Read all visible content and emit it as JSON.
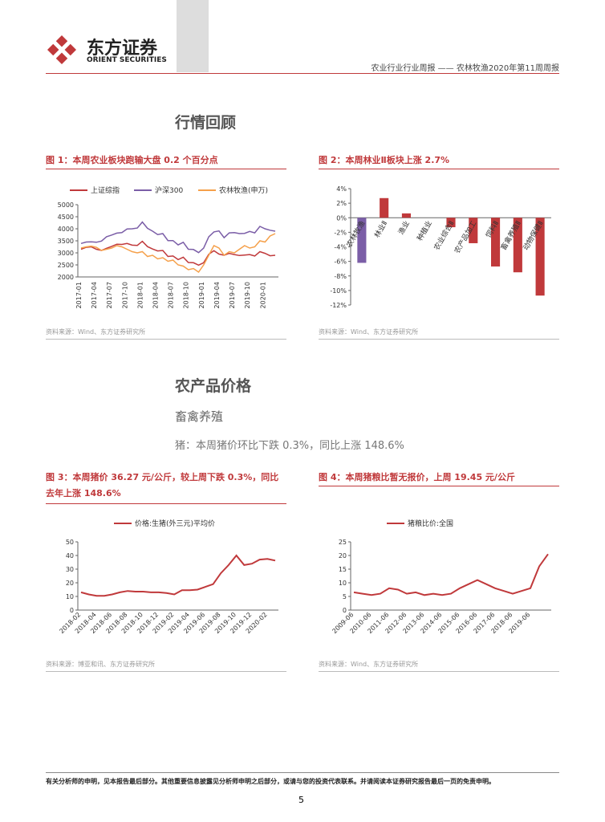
{
  "header": {
    "logo_cn": "东方证券",
    "logo_en": "ORIENT SECURITIES",
    "report": "农业行业行业周报 —— 农林牧渔2020年第11周周报"
  },
  "sections": {
    "review": "行情回顾",
    "prices": "农产品价格",
    "livestock": "畜禽养殖",
    "pig": "猪：本周猪价环比下跌 0.3%，同比上涨 148.6%"
  },
  "figures": [
    {
      "title": "图 1：本周农业板块跑输大盘 0.2 个百分点",
      "source": "资料来源：Wind、东方证券研究所",
      "chart": {
        "type": "line",
        "categories": [
          "2017-01",
          null,
          null,
          "2017-04",
          null,
          null,
          "2017-07",
          null,
          null,
          "2017-10",
          null,
          null,
          "2018-01",
          null,
          null,
          "2018-04",
          null,
          null,
          "2018-07",
          null,
          null,
          "2018-10",
          null,
          null,
          "2019-01",
          null,
          null,
          "2019-04",
          null,
          null,
          "2019-07",
          null,
          null,
          "2019-10",
          null,
          null,
          "2020-01",
          null,
          null
        ],
        "ylim": [
          2000,
          5000
        ],
        "yticks": [
          2000,
          2500,
          3000,
          3500,
          4000,
          4500,
          5000
        ],
        "series": [
          {
            "name": "上证综指",
            "color": "#c0393b",
            "values": [
              3150,
              3230,
              3250,
              3150,
              3100,
              3190,
              3270,
              3360,
              3350,
              3390,
              3320,
              3310,
              3480,
              3260,
              3160,
              3080,
              3100,
              2850,
              2870,
              2720,
              2820,
              2600,
              2590,
              2490,
              2590,
              2940,
              3090,
              2950,
              2900,
              2980,
              2930,
              2890,
              2910,
              2930,
              2870,
              3050,
              2980,
              2880,
              2900
            ]
          },
          {
            "name": "沪深300",
            "color": "#7b5ea7",
            "values": [
              3390,
              3450,
              3460,
              3440,
              3490,
              3670,
              3740,
              3820,
              3840,
              3990,
              4000,
              4030,
              4280,
              4020,
              3900,
              3760,
              3800,
              3510,
              3510,
              3330,
              3440,
              3150,
              3140,
              3010,
              3200,
              3670,
              3870,
              3910,
              3630,
              3830,
              3840,
              3800,
              3810,
              3890,
              3830,
              4100,
              4000,
              3940,
              3900
            ]
          },
          {
            "name": "农林牧渔(申万)",
            "color": "#f5a04a",
            "values": [
              3200,
              3250,
              3280,
              3230,
              3100,
              3150,
              3200,
              3300,
              3250,
              3150,
              3050,
              3000,
              3050,
              2850,
              2900,
              2750,
              2800,
              2650,
              2700,
              2500,
              2450,
              2300,
              2350,
              2200,
              2500,
              2900,
              3300,
              3200,
              2900,
              3050,
              3000,
              3150,
              3300,
              3200,
              3250,
              3500,
              3450,
              3700,
              3800
            ]
          }
        ]
      }
    },
    {
      "title": "图 2：本周林业Ⅱ板块上涨 2.7%",
      "source": "资料来源：Wind、东方证券研究所",
      "chart": {
        "type": "bar",
        "categories": [
          "农林牧渔",
          "林业Ⅱ",
          "渔业",
          "种植业",
          "农业综合Ⅱ",
          "农产品加工",
          "饲料Ⅱ",
          "畜禽养殖Ⅱ",
          "动物保健Ⅱ"
        ],
        "values": [
          -6.2,
          2.7,
          0.6,
          0,
          -1.3,
          -3.5,
          -6.7,
          -7.5,
          -10.7
        ],
        "colors": [
          "#7b5ea7",
          "#c0393b",
          "#c0393b",
          "#c0393b",
          "#c0393b",
          "#c0393b",
          "#c0393b",
          "#c0393b",
          "#c0393b"
        ],
        "ylim": [
          -12,
          4
        ],
        "yticks": [
          {
            "value": -12,
            "label": "-12%"
          },
          {
            "value": -10,
            "label": "-10%"
          },
          {
            "value": -8,
            "label": "-8%"
          },
          {
            "value": -6,
            "label": "-6%"
          },
          {
            "value": -4,
            "label": "-4%"
          },
          {
            "value": -2,
            "label": "-2%"
          },
          {
            "value": 0,
            "label": "0%"
          },
          {
            "value": 2,
            "label": "2%"
          },
          {
            "value": 4,
            "label": "4%"
          }
        ]
      }
    },
    {
      "title": "图 3：本周猪价 36.27 元/公斤，较上周下跌 0.3%，同比去年上涨 148.6%",
      "source": "资料来源：博亚和讯、东方证券研究所",
      "chart": {
        "type": "line",
        "categories": [
          "2018-02",
          null,
          "2018-04",
          null,
          "2018-06",
          null,
          "2018-08",
          null,
          "2018-10",
          null,
          "2018-12",
          null,
          "2019-02",
          null,
          "2019-04",
          null,
          "2019-06",
          null,
          "2019-08",
          null,
          "2019-10",
          null,
          "2019-12",
          null,
          "2020-02",
          null
        ],
        "ylim": [
          0,
          50
        ],
        "yticks": [
          0,
          10,
          20,
          30,
          40,
          50
        ],
        "series": [
          {
            "name": "价格:生猪(外三元)平均价",
            "color": "#c0393b",
            "values": [
              13,
              11.5,
              10.5,
              10.5,
              11.5,
              13,
              14,
              13.5,
              13.5,
              13,
              13,
              12.5,
              11.5,
              14.5,
              14.5,
              15,
              17,
              19,
              27,
              33,
              40,
              33,
              34,
              37,
              37.5,
              36.3
            ]
          }
        ]
      }
    },
    {
      "title": "图 4：本周猪粮比暂无报价，上周 19.45 元/公斤",
      "source": "资料来源：Wind、东方证券研究所",
      "chart": {
        "type": "line",
        "categories": [
          "2009-06",
          null,
          "2010-06",
          null,
          "2011-06",
          null,
          "2012-06",
          null,
          "2013-06",
          null,
          "2014-06",
          null,
          "2015-06",
          null,
          "2016-06",
          null,
          "2017-06",
          null,
          "2018-06",
          null,
          "2019-06",
          null,
          null
        ],
        "ylim": [
          0,
          25
        ],
        "yticks": [
          0,
          5,
          10,
          15,
          20,
          25
        ],
        "series": [
          {
            "name": "猪粮比价:全国",
            "color": "#c0393b",
            "values": [
              6.5,
              6,
              5.5,
              6,
              8,
              7.5,
              6,
              6.5,
              5.5,
              6,
              5.5,
              6,
              8,
              9.5,
              11,
              9.5,
              8,
              7,
              6,
              7,
              8,
              16,
              20.5
            ]
          }
        ]
      }
    }
  ],
  "footer": {
    "disclaimer": "有关分析师的申明，见本报告最后部分。其他重要信息披露见分析师申明之后部分，或请与您的投资代表联系。并请阅读本证券研究报告最后一页的免责申明。",
    "page": "5"
  }
}
